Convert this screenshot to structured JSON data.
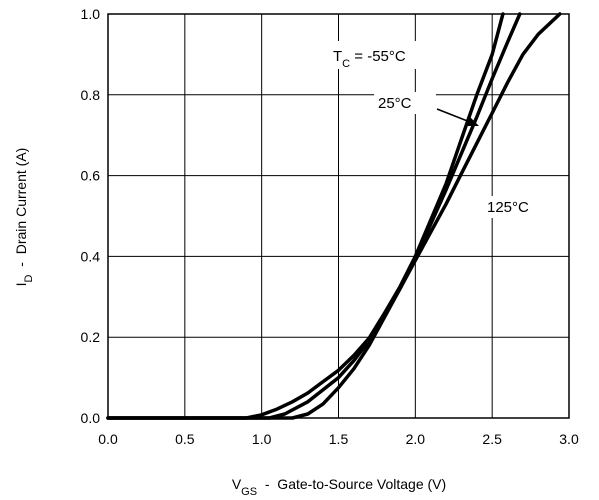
{
  "chart_data": {
    "type": "line",
    "xlabel": {
      "main": "V",
      "sub": "GS",
      "rest": "  -  Gate-to-Source Voltage (V)"
    },
    "ylabel": {
      "main": "I",
      "sub": "D",
      "rest": "  -  Drain Current (A)"
    },
    "xlim": [
      0.0,
      3.0
    ],
    "ylim": [
      0.0,
      1.0
    ],
    "x_ticks": [
      "0.0",
      "0.5",
      "1.0",
      "1.5",
      "2.0",
      "2.5",
      "3.0"
    ],
    "y_ticks": [
      "0.0",
      "0.2",
      "0.4",
      "0.6",
      "0.8",
      "1.0"
    ],
    "grid": true,
    "series": [
      {
        "label": "-55°C",
        "points": [
          [
            0.0,
            0.0
          ],
          [
            0.9,
            0.0
          ],
          [
            1.0,
            0.008
          ],
          [
            1.1,
            0.022
          ],
          [
            1.2,
            0.04
          ],
          [
            1.3,
            0.062
          ],
          [
            1.4,
            0.09
          ],
          [
            1.5,
            0.118
          ],
          [
            1.6,
            0.155
          ],
          [
            1.7,
            0.198
          ],
          [
            1.8,
            0.26
          ],
          [
            1.9,
            0.325
          ],
          [
            2.0,
            0.4
          ],
          [
            2.1,
            0.49
          ],
          [
            2.2,
            0.58
          ],
          [
            2.3,
            0.69
          ],
          [
            2.4,
            0.8
          ],
          [
            2.5,
            0.9
          ],
          [
            2.57,
            1.0
          ]
        ]
      },
      {
        "label": "25°C",
        "points": [
          [
            0.0,
            0.0
          ],
          [
            1.05,
            0.0
          ],
          [
            1.15,
            0.01
          ],
          [
            1.3,
            0.04
          ],
          [
            1.4,
            0.07
          ],
          [
            1.5,
            0.1
          ],
          [
            1.6,
            0.142
          ],
          [
            1.7,
            0.192
          ],
          [
            1.8,
            0.255
          ],
          [
            1.9,
            0.32
          ],
          [
            2.0,
            0.395
          ],
          [
            2.1,
            0.48
          ],
          [
            2.2,
            0.565
          ],
          [
            2.3,
            0.655
          ],
          [
            2.4,
            0.745
          ],
          [
            2.5,
            0.84
          ],
          [
            2.6,
            0.93
          ],
          [
            2.68,
            1.0
          ]
        ]
      },
      {
        "label": "125°C",
        "points": [
          [
            0.0,
            0.0
          ],
          [
            1.2,
            0.0
          ],
          [
            1.3,
            0.01
          ],
          [
            1.4,
            0.035
          ],
          [
            1.5,
            0.075
          ],
          [
            1.6,
            0.122
          ],
          [
            1.7,
            0.18
          ],
          [
            1.8,
            0.25
          ],
          [
            1.9,
            0.32
          ],
          [
            2.0,
            0.39
          ],
          [
            2.1,
            0.46
          ],
          [
            2.2,
            0.53
          ],
          [
            2.3,
            0.605
          ],
          [
            2.4,
            0.68
          ],
          [
            2.5,
            0.755
          ],
          [
            2.6,
            0.83
          ],
          [
            2.7,
            0.9
          ],
          [
            2.8,
            0.95
          ],
          [
            2.94,
            1.0
          ]
        ]
      }
    ],
    "annotations": {
      "tc_main": "T",
      "tc_sub": "C",
      "tc_rest": " = -55°C",
      "mid": "25°C",
      "high": "125°C"
    }
  }
}
